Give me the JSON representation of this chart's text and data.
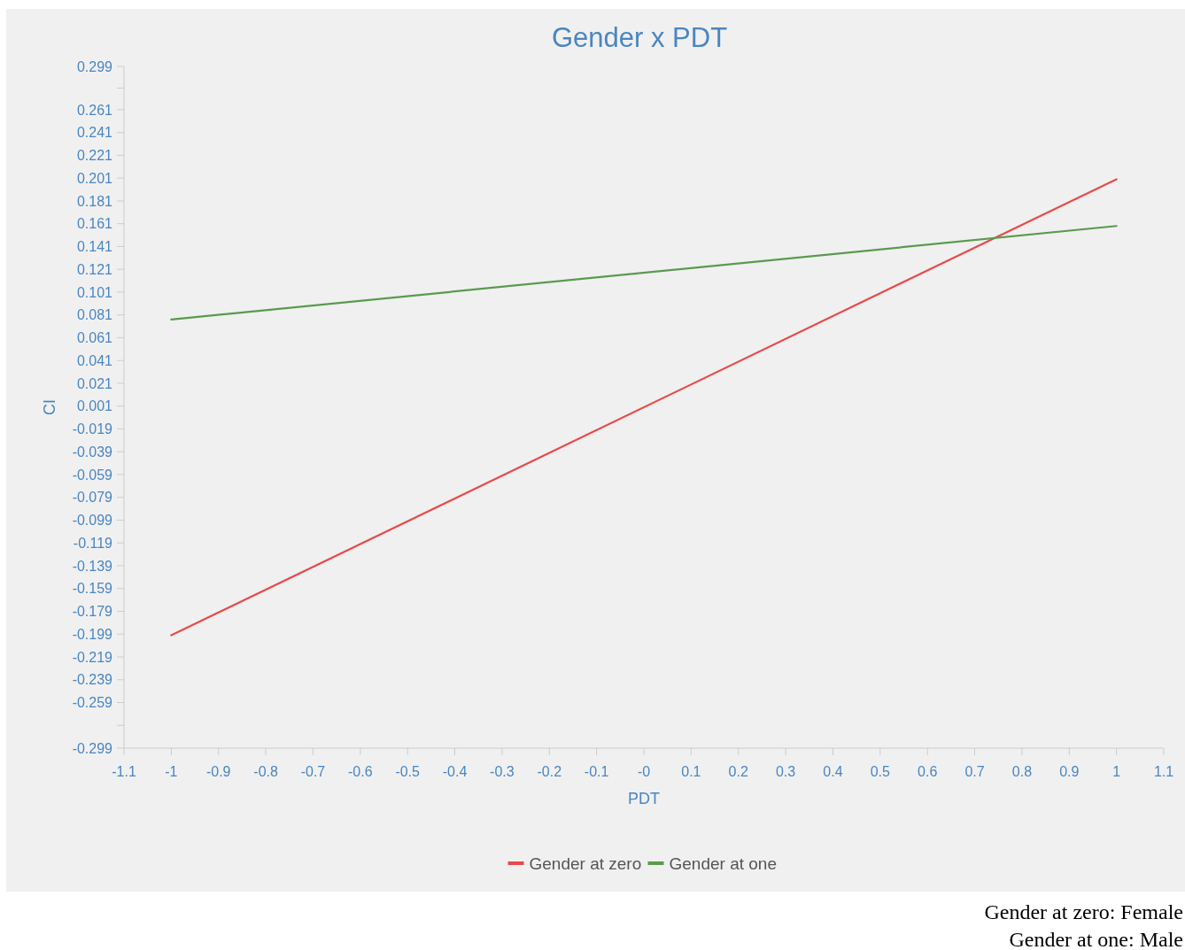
{
  "chart_data": {
    "type": "line",
    "title": "Gender x PDT",
    "xlabel": "PDT",
    "ylabel": "CI",
    "x": [
      -1,
      1
    ],
    "series": [
      {
        "name": "Gender at zero",
        "color": "#e84a4a",
        "values": [
          -0.2,
          0.2
        ]
      },
      {
        "name": "Gender at one",
        "color": "#5a9a4e",
        "values": [
          0.077,
          0.159
        ]
      }
    ],
    "xlim": [
      -1.1,
      1.1
    ],
    "xticks": [
      -1.1,
      -1,
      -0.9,
      -0.8,
      -0.7,
      -0.6,
      -0.5,
      -0.4,
      -0.3,
      -0.2,
      -0.1,
      {
        "value": 0,
        "label": "-0"
      },
      0.1,
      0.2,
      0.3,
      0.4,
      0.5,
      0.6,
      0.7,
      0.8,
      0.9,
      1,
      1.1
    ],
    "ylim": [
      -0.299,
      0.299
    ],
    "yticks": [
      -0.299,
      {
        "value": -0.279,
        "label": null
      },
      -0.259,
      -0.239,
      -0.219,
      -0.199,
      -0.179,
      -0.159,
      -0.139,
      -0.119,
      -0.099,
      -0.079,
      -0.059,
      -0.039,
      -0.019,
      0.001,
      0.021,
      0.041,
      0.061,
      0.081,
      0.101,
      0.121,
      0.141,
      0.161,
      0.181,
      0.201,
      0.221,
      0.241,
      0.261,
      {
        "value": 0.28,
        "label": null
      },
      0.299
    ],
    "grid": false,
    "legend": "bottom",
    "marker": "none",
    "line_style": "solid",
    "annotations": [
      "Gender at zero: Female",
      "Gender at one: Male"
    ]
  }
}
